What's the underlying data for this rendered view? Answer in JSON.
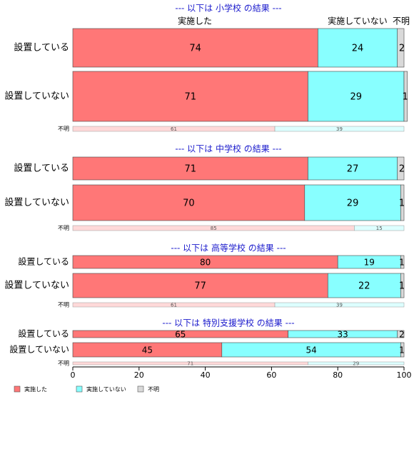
{
  "chart_data": {
    "type": "bar",
    "orientation": "horizontal",
    "stacked": "100%",
    "categories_note": "",
    "series_names": [
      "実施した",
      "実施していない",
      "不明"
    ],
    "colors": [
      "#FF7777",
      "#88FFFF",
      "#D9D9D9"
    ],
    "xlim": [
      0,
      100
    ],
    "x_ticks": [
      "0",
      "20",
      "40",
      "60",
      "80",
      "100"
    ],
    "column_headers": [
      "実施した",
      "実施していない",
      "不明"
    ],
    "grid": false,
    "legend_position": "bottom-left",
    "panels": [
      {
        "title": "--- 以下は 小学校 の結果 ---",
        "rows": [
          {
            "label": "設置している",
            "values": [
              74,
              24,
              2
            ]
          },
          {
            "label": "設置していない",
            "values": [
              71,
              29,
              1
            ]
          }
        ],
        "unknown": {
          "label": "不明",
          "values": [
            61,
            39,
            0
          ]
        }
      },
      {
        "title": "--- 以下は 中学校 の結果 ---",
        "rows": [
          {
            "label": "設置している",
            "values": [
              71,
              27,
              2
            ]
          },
          {
            "label": "設置していない",
            "values": [
              70,
              29,
              1
            ]
          }
        ],
        "unknown": {
          "label": "不明",
          "values": [
            85,
            15,
            0
          ]
        }
      },
      {
        "title": "--- 以下は 高等学校 の結果 ---",
        "rows": [
          {
            "label": "設置している",
            "values": [
              80,
              19,
              1
            ]
          },
          {
            "label": "設置していない",
            "values": [
              77,
              22,
              1
            ]
          }
        ],
        "unknown": {
          "label": "不明",
          "values": [
            61,
            39,
            0
          ]
        }
      },
      {
        "title": "--- 以下は 特別支援学校 の結果 ---",
        "rows": [
          {
            "label": "設置している",
            "values": [
              65,
              33,
              2
            ]
          },
          {
            "label": "設置していない",
            "values": [
              45,
              54,
              1
            ]
          }
        ],
        "unknown": {
          "label": "不明",
          "values": [
            71,
            29,
            0
          ]
        }
      }
    ]
  }
}
